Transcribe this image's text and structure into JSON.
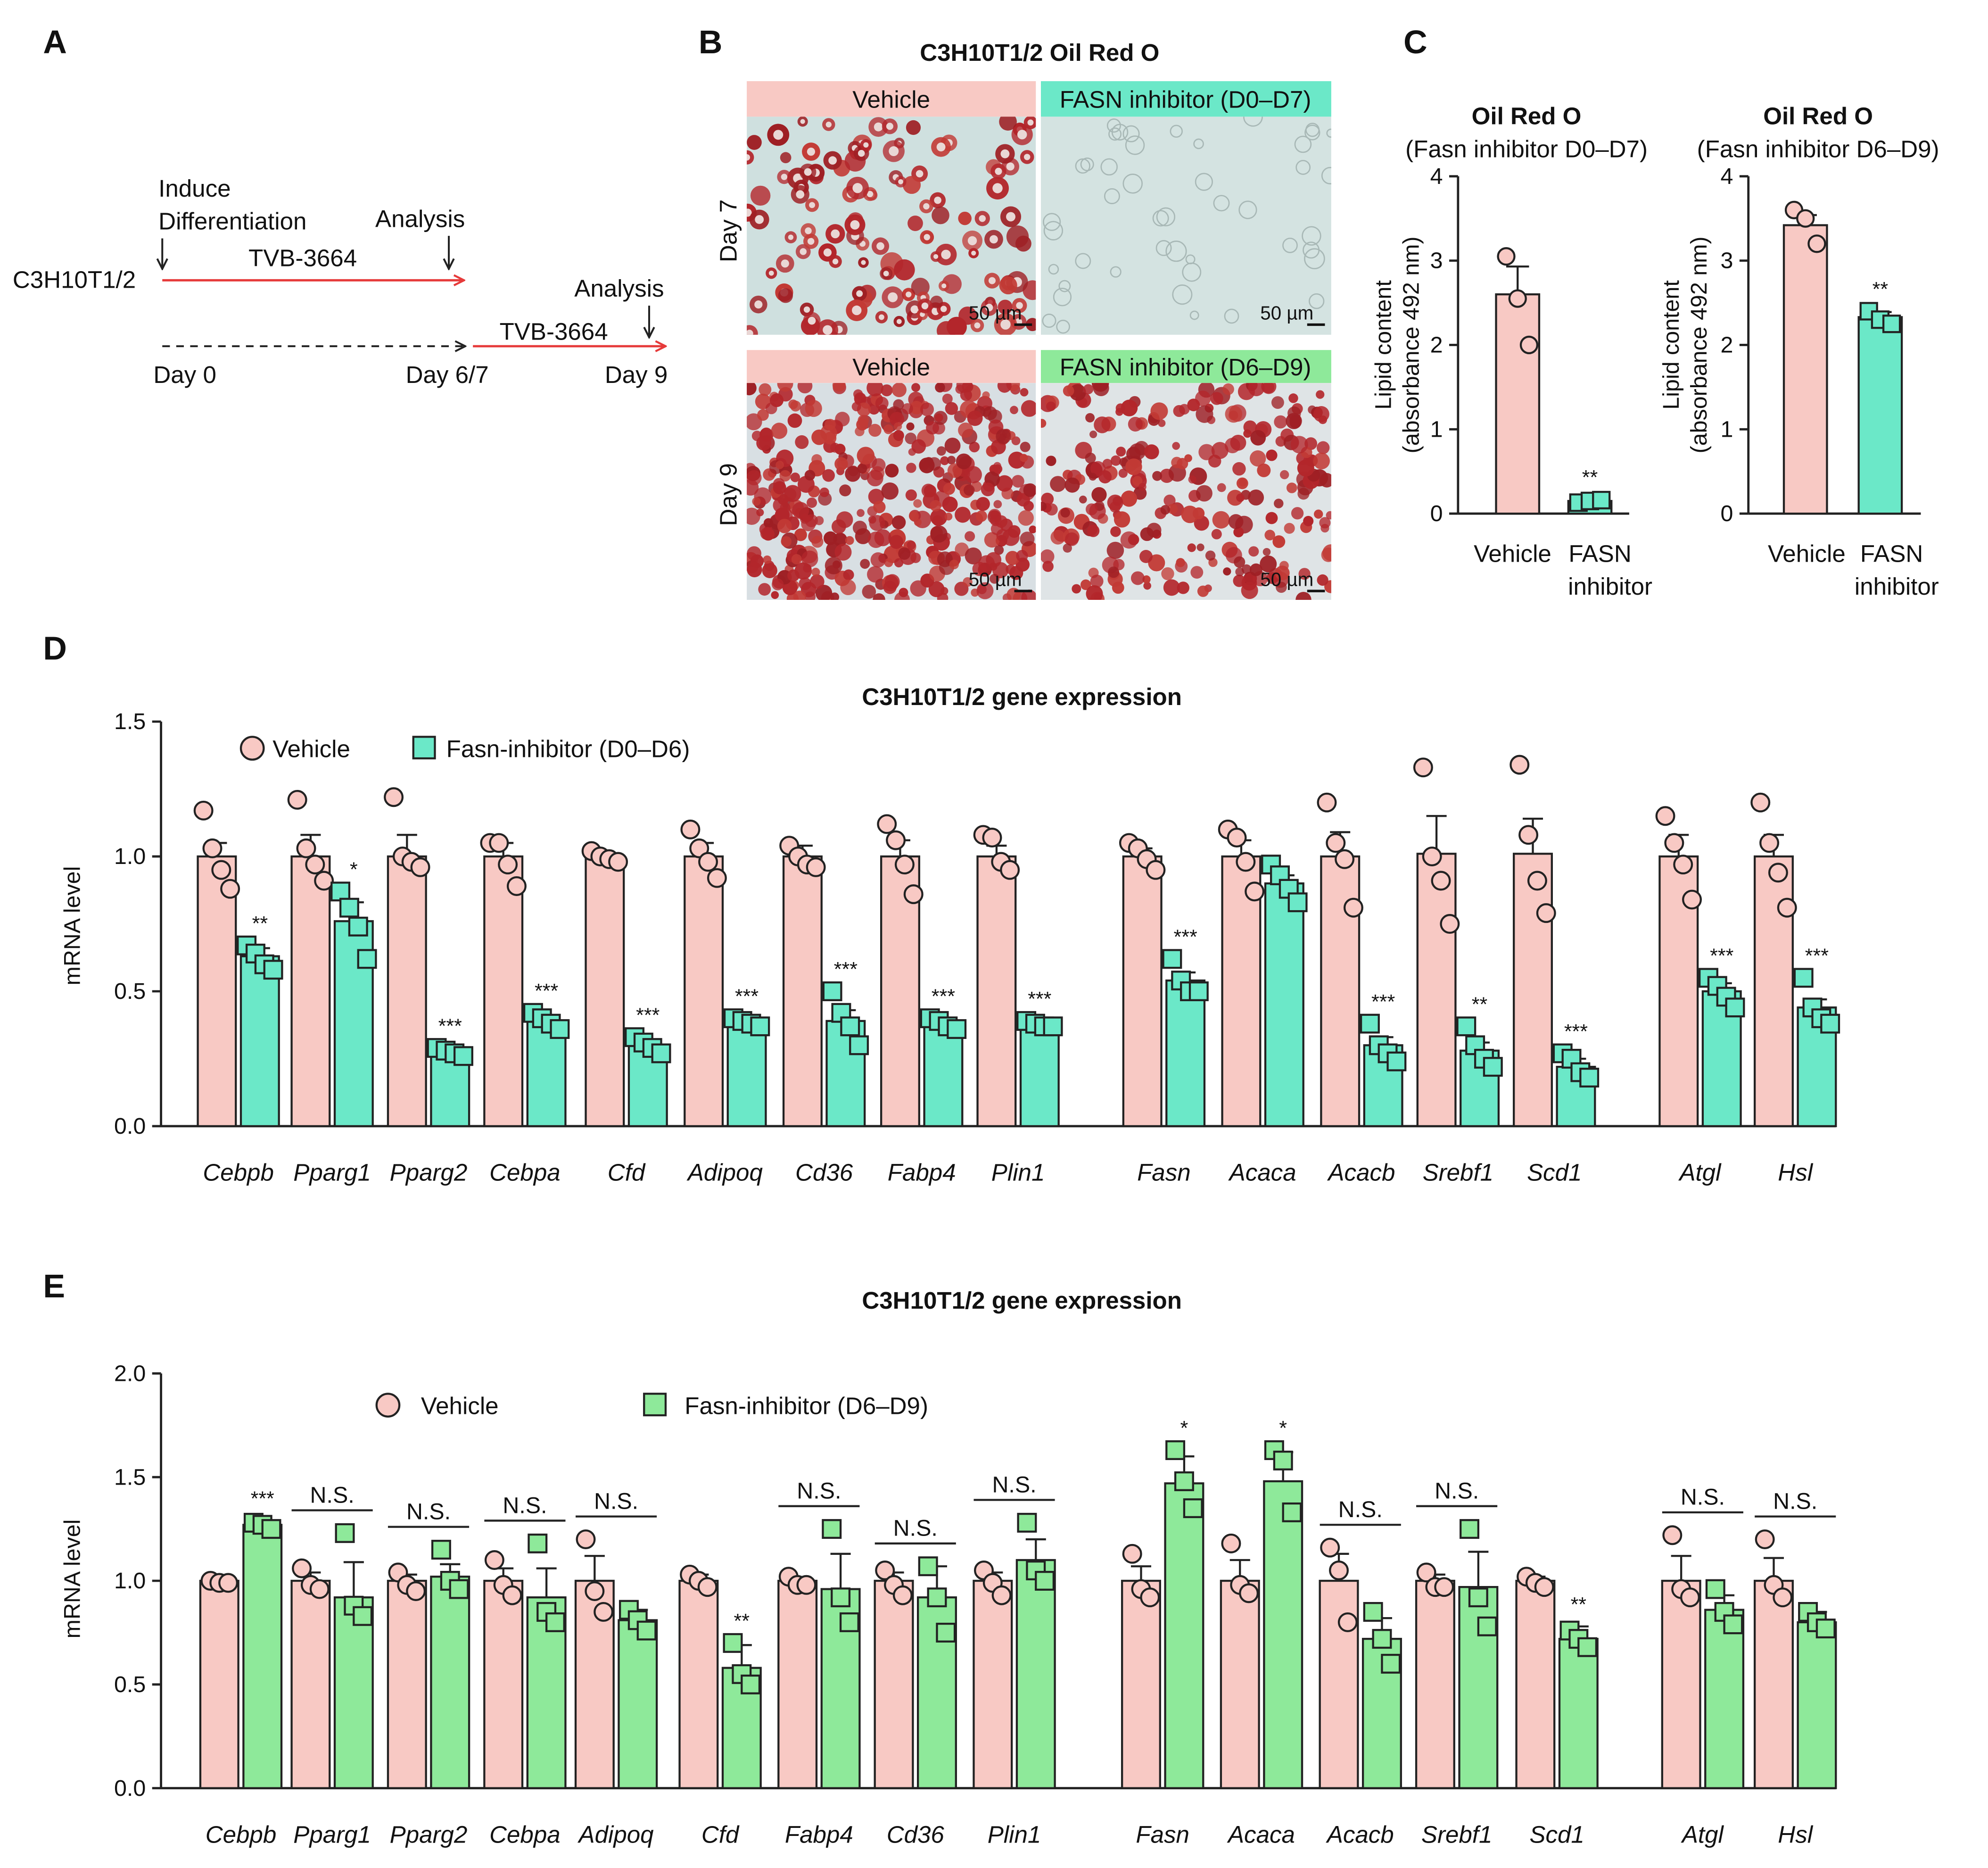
{
  "colors": {
    "vehicle": "#f8c9c4",
    "fasn_d0": "#6be8c8",
    "fasn_d6": "#8ee99a",
    "arrow": "#e63a3a",
    "stain_dark": "#b3262b",
    "stain_bg_light": "#cfe0df",
    "stain_bg_day9": "#d8dfe3"
  },
  "panel_a": {
    "letter": "A",
    "cell_line": "C3H10T1/2",
    "induce_line1": "Induce",
    "induce_line2": "Differentiation",
    "analysis_1": "Analysis",
    "analysis_2": "Analysis",
    "drug_1": "TVB-3664",
    "drug_2": "TVB-3664",
    "day_0": "Day 0",
    "day_6_7": "Day 6/7",
    "day_9": "Day 9"
  },
  "panel_b": {
    "letter": "B",
    "title": "C3H10T1/2 Oil Red O",
    "header_vehicle_top": "Vehicle",
    "header_fasn_top": "FASN inhibitor (D0–D7)",
    "header_vehicle_bottom": "Vehicle",
    "header_fasn_bottom": "FASN inhibitor (D6–D9)",
    "row_day7": "Day 7",
    "row_day9": "Day 9",
    "scale_bar": "50 µm"
  },
  "panel_c": {
    "letter": "C",
    "y_axis_label_line1": "Lipid content",
    "y_axis_label_line2": "(absorbance 492 nm)",
    "category_vehicle": "Vehicle",
    "category_fasn_line1": "FASN",
    "category_fasn_line2": "inhibitor"
  },
  "panel_d": {
    "letter": "D"
  },
  "panel_e": {
    "letter": "E"
  },
  "chart_data": [
    {
      "id": "C-left",
      "type": "bar",
      "title": "Oil Red O",
      "subtitle": "(Fasn inhibitor D0–D7)",
      "ylabel": "Lipid content (absorbance 492 nm)",
      "ylim": [
        0,
        4
      ],
      "yticks": [
        0,
        1,
        2,
        3,
        4
      ],
      "categories": [
        "Vehicle",
        "FASN inhibitor"
      ],
      "values": [
        2.6,
        0.15
      ],
      "errors": [
        0.33,
        0.02
      ],
      "points": [
        [
          3.05,
          2.55,
          2.0
        ],
        [
          0.13,
          0.15,
          0.16
        ]
      ],
      "significance": [
        "",
        "**"
      ]
    },
    {
      "id": "C-right",
      "type": "bar",
      "title": "Oil Red O",
      "subtitle": "(Fasn inhibitor D6–D9)",
      "ylabel": "Lipid content (absorbance 492 nm)",
      "ylim": [
        0,
        4
      ],
      "yticks": [
        0,
        1,
        2,
        3,
        4
      ],
      "categories": [
        "Vehicle",
        "FASN inhibitor"
      ],
      "values": [
        3.42,
        2.33
      ],
      "errors": [
        0.12,
        0.06
      ],
      "points": [
        [
          3.6,
          3.5,
          3.2
        ],
        [
          2.4,
          2.3,
          2.25
        ]
      ],
      "significance": [
        "",
        "**"
      ]
    },
    {
      "id": "D",
      "type": "bar",
      "title": "C3H10T1/2 gene expression",
      "ylabel": "mRNA level",
      "ylim": [
        0,
        1.5
      ],
      "yticks": [
        "0.0",
        "0.5",
        "1.0",
        "1.5"
      ],
      "legend": [
        "Vehicle",
        "Fasn-inhibitor (D0–D6)"
      ],
      "legend_position": "top-left",
      "categories": [
        "Cebpb",
        "Pparg1",
        "Pparg2",
        "Cebpa",
        "Cfd",
        "Adipoq",
        "Cd36",
        "Fabp4",
        "Plin1",
        "Fasn",
        "Acaca",
        "Acacb",
        "Srebf1",
        "Scd1",
        "Atgl",
        "Hsl"
      ],
      "groups": [
        9,
        5,
        2
      ],
      "series": [
        {
          "name": "Vehicle",
          "values": [
            1.0,
            1.0,
            1.0,
            1.0,
            1.0,
            1.0,
            1.0,
            1.0,
            1.0,
            1.0,
            1.0,
            1.0,
            1.01,
            1.01,
            1.0,
            1.0
          ],
          "errors": [
            0.05,
            0.08,
            0.08,
            0.05,
            0.01,
            0.05,
            0.04,
            0.06,
            0.04,
            0.03,
            0.06,
            0.09,
            0.14,
            0.13,
            0.08,
            0.08
          ],
          "points": [
            [
              1.17,
              1.03,
              0.95,
              0.88
            ],
            [
              1.21,
              1.03,
              0.97,
              0.91
            ],
            [
              1.22,
              1.0,
              0.98,
              0.96
            ],
            [
              1.05,
              1.05,
              0.97,
              0.89
            ],
            [
              1.02,
              1.0,
              0.99,
              0.98
            ],
            [
              1.1,
              1.03,
              0.98,
              0.92
            ],
            [
              1.04,
              1.0,
              0.97,
              0.96
            ],
            [
              1.12,
              1.06,
              0.97,
              0.86
            ],
            [
              1.08,
              1.07,
              0.98,
              0.95
            ],
            [
              1.05,
              1.03,
              0.99,
              0.95
            ],
            [
              1.1,
              1.07,
              0.98,
              0.87
            ],
            [
              1.2,
              1.05,
              0.99,
              0.81
            ],
            [
              1.33,
              1.0,
              0.91,
              0.75
            ],
            [
              1.34,
              1.08,
              0.91,
              0.79
            ],
            [
              1.15,
              1.05,
              0.97,
              0.84
            ],
            [
              1.2,
              1.05,
              0.94,
              0.81
            ]
          ]
        },
        {
          "name": "Fasn-inhibitor (D0–D6)",
          "values": [
            0.63,
            0.76,
            0.27,
            0.39,
            0.3,
            0.38,
            0.39,
            0.38,
            0.38,
            0.54,
            0.9,
            0.3,
            0.28,
            0.22,
            0.5,
            0.44
          ],
          "errors": [
            0.03,
            0.07,
            0.01,
            0.02,
            0.02,
            0.01,
            0.04,
            0.02,
            0.01,
            0.03,
            0.03,
            0.03,
            0.03,
            0.03,
            0.03,
            0.03
          ],
          "points": [
            [
              0.67,
              0.64,
              0.6,
              0.58
            ],
            [
              0.87,
              0.81,
              0.74,
              0.62
            ],
            [
              0.29,
              0.28,
              0.27,
              0.26
            ],
            [
              0.42,
              0.4,
              0.38,
              0.36
            ],
            [
              0.33,
              0.31,
              0.29,
              0.27
            ],
            [
              0.4,
              0.39,
              0.38,
              0.37
            ],
            [
              0.5,
              0.42,
              0.37,
              0.3
            ],
            [
              0.4,
              0.39,
              0.37,
              0.36
            ],
            [
              0.39,
              0.38,
              0.37,
              0.37
            ],
            [
              0.62,
              0.54,
              0.5,
              0.5
            ],
            [
              0.97,
              0.93,
              0.88,
              0.83
            ],
            [
              0.38,
              0.3,
              0.27,
              0.24
            ],
            [
              0.37,
              0.3,
              0.25,
              0.22
            ],
            [
              0.27,
              0.25,
              0.2,
              0.18
            ],
            [
              0.55,
              0.52,
              0.48,
              0.44
            ],
            [
              0.55,
              0.44,
              0.4,
              0.38
            ]
          ]
        }
      ],
      "significance": [
        "**",
        "*",
        "***",
        "***",
        "***",
        "***",
        "***",
        "***",
        "***",
        "***",
        "",
        "***",
        "**",
        "***",
        "***",
        "***"
      ]
    },
    {
      "id": "E",
      "type": "bar",
      "title": "C3H10T1/2 gene expression",
      "ylabel": "mRNA level",
      "ylim": [
        0,
        2.0
      ],
      "yticks": [
        "0.0",
        "0.5",
        "1.0",
        "1.5",
        "2.0"
      ],
      "legend": [
        "Vehicle",
        "Fasn-inhibitor (D6–D9)"
      ],
      "legend_position": "top",
      "categories": [
        "Cebpb",
        "Pparg1",
        "Pparg2",
        "Cebpa",
        "Adipoq",
        "Cfd",
        "Fabp4",
        "Cd36",
        "Plin1",
        "Fasn",
        "Acaca",
        "Acacb",
        "Srebf1",
        "Scd1",
        "Atgl",
        "Hsl"
      ],
      "groups": [
        9,
        5,
        2
      ],
      "series": [
        {
          "name": "Vehicle",
          "values": [
            1.0,
            1.0,
            1.0,
            1.0,
            1.0,
            1.0,
            1.0,
            1.0,
            1.0,
            1.0,
            1.0,
            1.0,
            1.0,
            1.0,
            1.0,
            1.0
          ],
          "errors": [
            0.01,
            0.04,
            0.03,
            0.06,
            0.12,
            0.03,
            0.01,
            0.04,
            0.04,
            0.07,
            0.1,
            0.13,
            0.03,
            0.02,
            0.12,
            0.11
          ],
          "points": [
            [
              1.0,
              0.99,
              0.99
            ],
            [
              1.06,
              0.98,
              0.96
            ],
            [
              1.04,
              0.98,
              0.95
            ],
            [
              1.1,
              0.98,
              0.93
            ],
            [
              1.2,
              0.95,
              0.85
            ],
            [
              1.03,
              1.0,
              0.97
            ],
            [
              1.02,
              0.98,
              0.98
            ],
            [
              1.05,
              0.98,
              0.93
            ],
            [
              1.05,
              0.99,
              0.93
            ],
            [
              1.13,
              0.96,
              0.92
            ],
            [
              1.18,
              0.98,
              0.94
            ],
            [
              1.16,
              1.05,
              0.8
            ],
            [
              1.04,
              0.97,
              0.97
            ],
            [
              1.02,
              0.99,
              0.97
            ],
            [
              1.22,
              0.96,
              0.92
            ],
            [
              1.2,
              0.98,
              0.92
            ]
          ]
        },
        {
          "name": "Fasn-inhibitor (D6–D9)",
          "values": [
            1.27,
            0.92,
            1.02,
            0.92,
            0.81,
            0.58,
            0.96,
            0.92,
            1.1,
            1.47,
            1.48,
            0.72,
            0.97,
            0.72,
            0.86,
            0.8
          ],
          "errors": [
            0.02,
            0.17,
            0.06,
            0.14,
            0.05,
            0.11,
            0.17,
            0.15,
            0.1,
            0.13,
            0.14,
            0.1,
            0.17,
            0.06,
            0.07,
            0.05
          ],
          "points": [
            [
              1.28,
              1.27,
              1.25
            ],
            [
              1.23,
              0.88,
              0.83
            ],
            [
              1.15,
              1.0,
              0.96
            ],
            [
              1.18,
              0.85,
              0.8
            ],
            [
              0.86,
              0.81,
              0.76
            ],
            [
              0.7,
              0.55,
              0.5
            ],
            [
              1.25,
              0.92,
              0.8
            ],
            [
              1.07,
              0.92,
              0.75
            ],
            [
              1.28,
              1.05,
              1.0
            ],
            [
              1.63,
              1.48,
              1.35
            ],
            [
              1.63,
              1.58,
              1.33
            ],
            [
              0.85,
              0.72,
              0.6
            ],
            [
              1.25,
              0.92,
              0.78
            ],
            [
              0.76,
              0.72,
              0.68
            ],
            [
              0.96,
              0.85,
              0.79
            ],
            [
              0.85,
              0.8,
              0.77
            ]
          ]
        }
      ],
      "significance": [
        "***",
        "N.S.",
        "N.S.",
        "N.S.",
        "N.S.",
        "**",
        "N.S.",
        "N.S.",
        "N.S.",
        "*",
        "*",
        "N.S.",
        "N.S.",
        "**",
        "N.S.",
        "N.S."
      ]
    }
  ]
}
